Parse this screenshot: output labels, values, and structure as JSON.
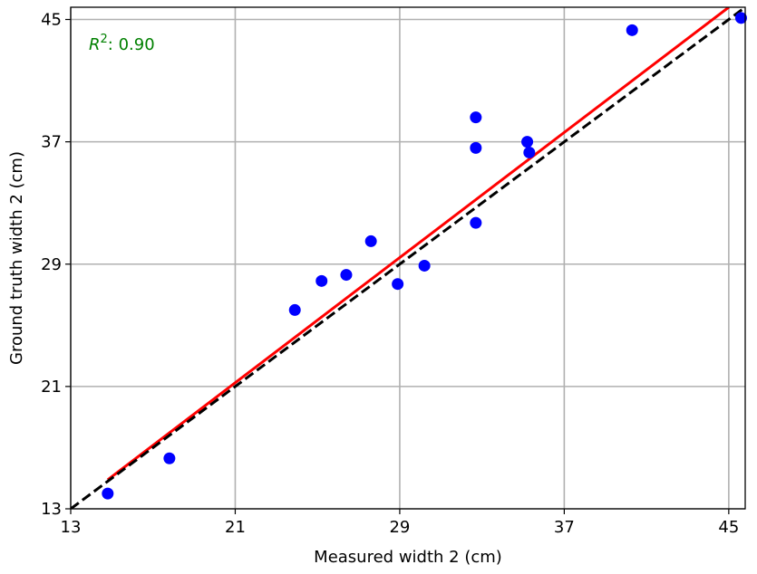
{
  "chart_data": {
    "type": "scatter",
    "title": "",
    "xlabel": "Measured width 2 (cm)",
    "ylabel": "Ground truth width 2 (cm)",
    "xlim": [
      13,
      45.8
    ],
    "ylim": [
      13,
      45.8
    ],
    "xticks": [
      13,
      21,
      29,
      37,
      45
    ],
    "yticks": [
      13,
      21,
      29,
      37,
      45
    ],
    "grid": true,
    "annotation": {
      "label": "R²: 0.90",
      "placement": "top-left",
      "color": "#008000"
    },
    "series": [
      {
        "type": "scatter",
        "color": "#0000ff",
        "points": [
          {
            "x": 14.8,
            "y": 14.0
          },
          {
            "x": 17.8,
            "y": 16.3
          },
          {
            "x": 23.9,
            "y": 26.0
          },
          {
            "x": 25.2,
            "y": 27.9
          },
          {
            "x": 26.4,
            "y": 28.3
          },
          {
            "x": 27.6,
            "y": 30.5
          },
          {
            "x": 28.9,
            "y": 27.7
          },
          {
            "x": 30.2,
            "y": 28.9
          },
          {
            "x": 32.7,
            "y": 31.7
          },
          {
            "x": 32.7,
            "y": 36.6
          },
          {
            "x": 32.7,
            "y": 38.6
          },
          {
            "x": 35.2,
            "y": 37.0
          },
          {
            "x": 35.3,
            "y": 36.3
          },
          {
            "x": 40.3,
            "y": 44.3
          },
          {
            "x": 45.6,
            "y": 45.1
          }
        ]
      },
      {
        "type": "line",
        "style": "solid",
        "color": "#ff0000",
        "x": [
          14.8,
          45.0
        ],
        "y": [
          14.9,
          45.8
        ]
      },
      {
        "type": "line",
        "style": "dashed",
        "color": "#000000",
        "x": [
          13,
          45.8
        ],
        "y": [
          13,
          45.8
        ]
      }
    ]
  }
}
